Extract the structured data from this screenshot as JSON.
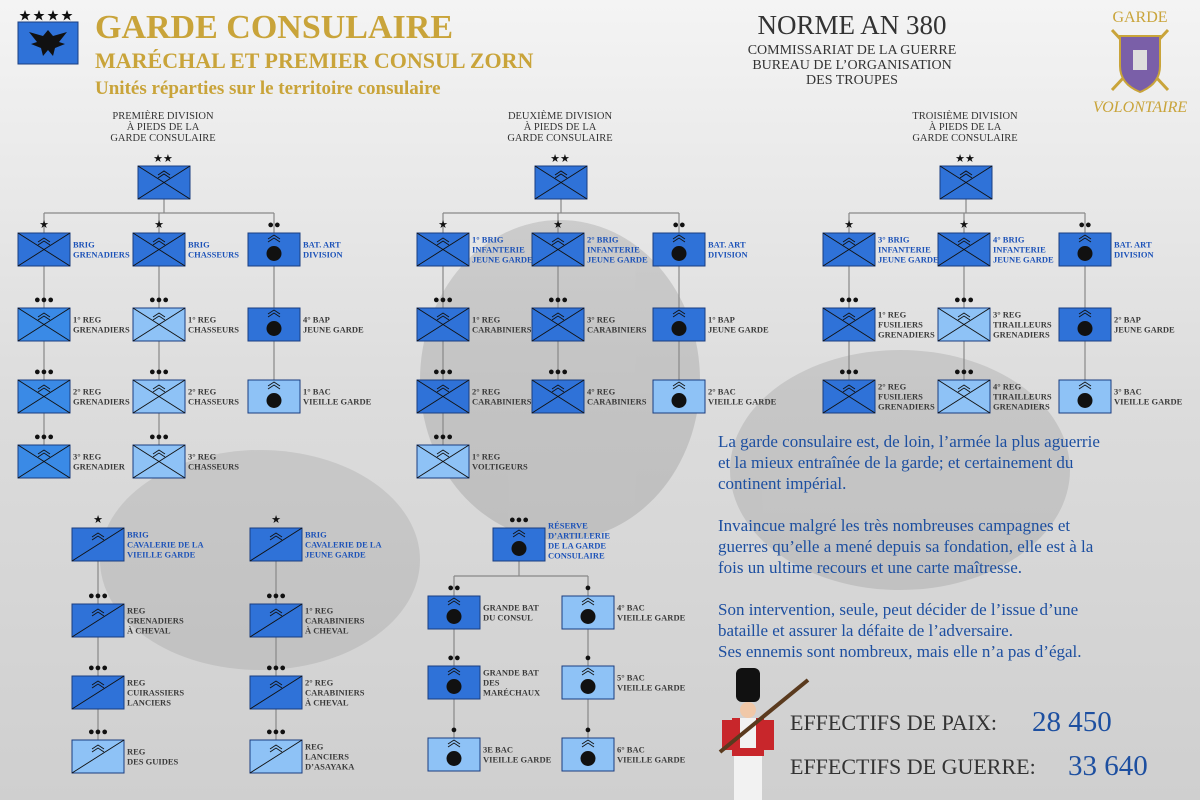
{
  "header": {
    "title": "GARDE CONSULAIRE",
    "subtitle": "MARÉCHAL ET PREMIER CONSUL ZORN",
    "tagline": "Unités réparties sur le territoire consulaire"
  },
  "norm": {
    "title": "NORME AN 380",
    "lines": [
      "COMMISSARIAT DE LA GUERRE",
      "BUREAU DE L’ORGANISATION",
      "DES TROUPES"
    ]
  },
  "logo": {
    "top": "GARDE",
    "bottom": "VOLONTAIRE"
  },
  "divisions": [
    {
      "label": [
        "PREMIÈRE DIVISION",
        "À PIEDS DE LA",
        "GARDE CONSULAIRE"
      ],
      "rank": "★★",
      "brigades": [
        {
          "rank": "★",
          "label": [
            "BRIG",
            "GRENADIERS"
          ],
          "kind": "inf",
          "color": "#2f72d8",
          "units": [
            {
              "rank": "●●●",
              "label": [
                "1° REG",
                "GRENADIERS"
              ],
              "kind": "inf",
              "color": "#3a8ae6"
            },
            {
              "rank": "●●●",
              "label": [
                "2° REG",
                "GRENADIERS"
              ],
              "kind": "inf",
              "color": "#3a8ae6"
            },
            {
              "rank": "●●●",
              "label": [
                "3° REG",
                "GRENADIER"
              ],
              "kind": "inf",
              "color": "#3a8ae6"
            }
          ]
        },
        {
          "rank": "★",
          "label": [
            "BRIG",
            "CHASSEURS"
          ],
          "kind": "inf",
          "color": "#2f72d8",
          "units": [
            {
              "rank": "●●●",
              "label": [
                "1° REG",
                "CHASSEURS"
              ],
              "kind": "inf",
              "color": "#8ec2f6"
            },
            {
              "rank": "●●●",
              "label": [
                "2° REG",
                "CHASSEURS"
              ],
              "kind": "inf",
              "color": "#8ec2f6"
            },
            {
              "rank": "●●●",
              "label": [
                "3° REG",
                "CHASSEURS"
              ],
              "kind": "inf",
              "color": "#8ec2f6"
            }
          ]
        },
        {
          "rank": "●●",
          "label": [
            "BAT. ART",
            "DIVISION"
          ],
          "kind": "art",
          "color": "#2f72d8",
          "units": [
            {
              "label": [
                "4° BAP",
                "JEUNE GARDE"
              ],
              "kind": "art",
              "color": "#2f72d8"
            },
            {
              "label": [
                "1° BAC",
                "VIEILLE GARDE"
              ],
              "kind": "art",
              "color": "#8ec2f6"
            }
          ]
        }
      ]
    },
    {
      "label": [
        "DEUXIÈME DIVISION",
        "À PIEDS DE LA",
        "GARDE CONSULAIRE"
      ],
      "rank": "★★",
      "brigades": [
        {
          "rank": "★",
          "label": [
            "1° BRIG",
            "INFANTERIE",
            "JEUNE GARDE"
          ],
          "kind": "inf",
          "color": "#2f72d8",
          "units": [
            {
              "rank": "●●●",
              "label": [
                "1° REG",
                "CARABINIERS"
              ],
              "kind": "inf",
              "color": "#2f72d8"
            },
            {
              "rank": "●●●",
              "label": [
                "2° REG",
                "CARABINIERS"
              ],
              "kind": "inf",
              "color": "#2f72d8"
            },
            {
              "rank": "●●●",
              "label": [
                "1° REG",
                "VOLTIGEURS"
              ],
              "kind": "inf",
              "color": "#8ec2f6"
            }
          ]
        },
        {
          "rank": "★",
          "label": [
            "2° BRIG",
            "INFANTERIE",
            "JEUNE GARDE"
          ],
          "kind": "inf",
          "color": "#2f72d8",
          "units": [
            {
              "rank": "●●●",
              "label": [
                "3° REG",
                "CARABINIERS"
              ],
              "kind": "inf",
              "color": "#2f72d8"
            },
            {
              "rank": "●●●",
              "label": [
                "4° REG",
                "CARABINIERS"
              ],
              "kind": "inf",
              "color": "#2f72d8"
            }
          ]
        },
        {
          "rank": "●●",
          "label": [
            "BAT. ART",
            "DIVISION"
          ],
          "kind": "art",
          "color": "#2f72d8",
          "units": [
            {
              "label": [
                "1° BAP",
                "JEUNE GARDE"
              ],
              "kind": "art",
              "color": "#2f72d8"
            },
            {
              "label": [
                "2° BAC",
                "VIEILLE GARDE"
              ],
              "kind": "art",
              "color": "#8ec2f6"
            }
          ]
        }
      ]
    },
    {
      "label": [
        "TROISIÈME DIVISION",
        "À PIEDS DE LA",
        "GARDE CONSULAIRE"
      ],
      "rank": "★★",
      "brigades": [
        {
          "rank": "★",
          "label": [
            "3° BRIG",
            "INFANTERIE",
            "JEUNE GARDE"
          ],
          "kind": "inf",
          "color": "#2f72d8",
          "units": [
            {
              "rank": "●●●",
              "label": [
                "1° REG",
                "FUSILIERS",
                "GRENADIERS"
              ],
              "kind": "inf",
              "color": "#2f72d8"
            },
            {
              "rank": "●●●",
              "label": [
                "2° REG",
                "FUSILIERS",
                "GRENADIERS"
              ],
              "kind": "inf",
              "color": "#2f72d8"
            }
          ]
        },
        {
          "rank": "★",
          "label": [
            "4° BRIG",
            "INFANTERIE",
            "JEUNE GARDE"
          ],
          "kind": "inf",
          "color": "#2f72d8",
          "units": [
            {
              "rank": "●●●",
              "label": [
                "3° REG",
                "TIRAILLEURS",
                "GRENADIERS"
              ],
              "kind": "inf",
              "color": "#8ec2f6"
            },
            {
              "rank": "●●●",
              "label": [
                "4° REG",
                "TIRAILLEURS",
                "GRENADIERS"
              ],
              "kind": "inf",
              "color": "#8ec2f6"
            }
          ]
        },
        {
          "rank": "●●",
          "label": [
            "BAT. ART",
            "DIVISION"
          ],
          "kind": "art",
          "color": "#2f72d8",
          "units": [
            {
              "label": [
                "2° BAP",
                "JEUNE GARDE"
              ],
              "kind": "art",
              "color": "#2f72d8"
            },
            {
              "label": [
                "3° BAC",
                "VIEILLE GARDE"
              ],
              "kind": "art",
              "color": "#8ec2f6"
            }
          ]
        }
      ]
    }
  ],
  "cavalry": [
    {
      "rank": "★",
      "label": [
        "BRIG",
        "CAVALERIE DE LA",
        "VIEILLE GARDE"
      ],
      "kind": "cav",
      "color": "#2f72d8",
      "units": [
        {
          "rank": "●●●",
          "label": [
            "REG",
            "GRENADIERS",
            "À CHEVAL"
          ],
          "kind": "cav",
          "color": "#2f72d8"
        },
        {
          "rank": "●●●",
          "label": [
            "REG",
            "CUIRASSIERS",
            "LANCIERS"
          ],
          "kind": "cav",
          "color": "#2f72d8"
        },
        {
          "rank": "●●●",
          "label": [
            "REG",
            "DES GUIDES"
          ],
          "kind": "cav",
          "color": "#8ec2f6"
        }
      ]
    },
    {
      "rank": "★",
      "label": [
        "BRIG",
        "CAVALERIE DE LA",
        "JEUNE GARDE"
      ],
      "kind": "cav",
      "color": "#2f72d8",
      "units": [
        {
          "rank": "●●●",
          "label": [
            "1° REG",
            "CARABINIERS",
            "À CHEVAL"
          ],
          "kind": "cav",
          "color": "#2f72d8"
        },
        {
          "rank": "●●●",
          "label": [
            "2° REG",
            "CARABINIERS",
            "À CHEVAL"
          ],
          "kind": "cav",
          "color": "#2f72d8"
        },
        {
          "rank": "●●●",
          "label": [
            "REG",
            "LANCIERS",
            "D’ASAYAKA"
          ],
          "kind": "cav",
          "color": "#8ec2f6"
        }
      ]
    }
  ],
  "artillery_reserve": {
    "rank": "●●●",
    "label": [
      "RÉSERVE",
      "D’ARTILLERIE",
      "DE LA GARDE",
      "CONSULAIRE"
    ],
    "kind": "art",
    "color": "#2f72d8",
    "columns": [
      [
        {
          "rank": "●●",
          "label": [
            "GRANDE BAT",
            "DU CONSUL"
          ],
          "kind": "art",
          "color": "#2f72d8"
        },
        {
          "rank": "●●",
          "label": [
            "GRANDE BAT",
            "DES",
            "MARÉCHAUX"
          ],
          "kind": "art",
          "color": "#2f72d8"
        },
        {
          "rank": "●",
          "label": [
            "3E BAC",
            "VIEILLE GARDE"
          ],
          "kind": "art",
          "color": "#8ec2f6"
        }
      ],
      [
        {
          "rank": "●",
          "label": [
            "4° BAC",
            "VIEILLE GARDE"
          ],
          "kind": "art",
          "color": "#8ec2f6"
        },
        {
          "rank": "●",
          "label": [
            "5° BAC",
            "VIEILLE GARDE"
          ],
          "kind": "art",
          "color": "#8ec2f6"
        },
        {
          "rank": "●",
          "label": [
            "6° BAC",
            "VIEILLE GARDE"
          ],
          "kind": "art",
          "color": "#8ec2f6"
        }
      ]
    ]
  },
  "paragraphs": [
    [
      "La garde consulaire est, de loin, l’armée la plus aguerrie",
      "et la mieux entraînée de la garde; et certainement du",
      "continent impérial."
    ],
    [
      "Invaincue malgré les très nombreuses campagnes et",
      "guerres qu’elle a mené depuis sa fondation, elle est à la",
      "fois un ultime recours et une carte maîtresse."
    ],
    [
      "Son intervention, seule, peut décider de l’issue d’une",
      "bataille et assurer la défaite de l’adversaire.",
      "Ses ennemis sont nombreux, mais elle n’a pas d’égal."
    ]
  ],
  "effectifs": [
    {
      "label": "EFFECTIFS DE PAIX:",
      "value": "28 450"
    },
    {
      "label": "EFFECTIFS DE GUERRE:",
      "value": "33 640"
    }
  ]
}
